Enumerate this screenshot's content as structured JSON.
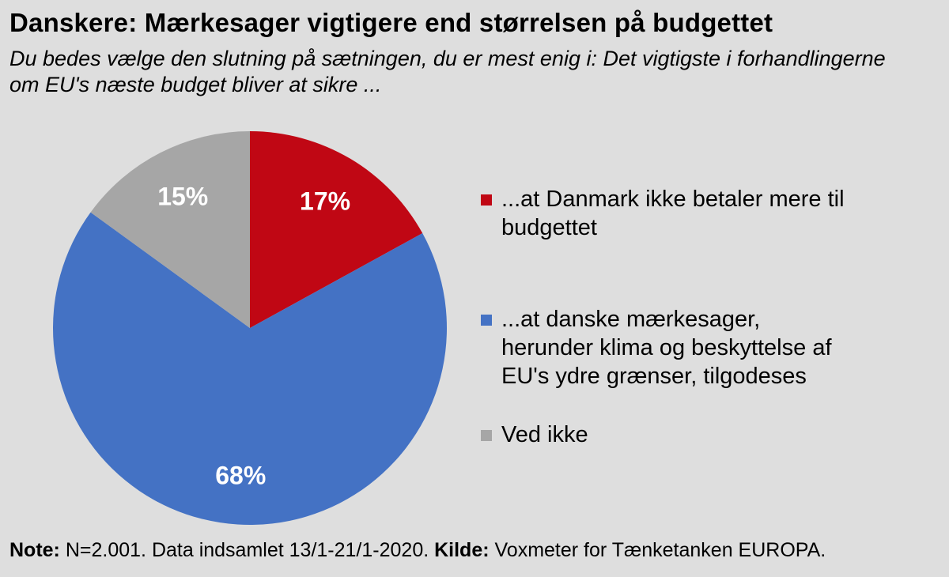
{
  "title": "Danskere: Mærkesager vigtigere end størrelsen på budgettet",
  "subtitle": "Du bedes vælge den slutning på sætningen, du er mest enig i: Det vigtigste i forhandlingerne om EU's næste budget bliver at sikre ...",
  "chart_data": {
    "type": "pie",
    "title": "Danskere: Mærkesager vigtigere end størrelsen på budgettet",
    "slices": [
      {
        "label": "...at Danmark ikke betaler mere til budgettet",
        "value": 17,
        "display": "17%",
        "color": "#c00714"
      },
      {
        "label": "...at danske mærkesager, herunder klima og beskyttelse af EU's ydre grænser, tilgodeses",
        "value": 68,
        "display": "68%",
        "color": "#4472c4"
      },
      {
        "label": "Ved ikke",
        "value": 15,
        "display": "15%",
        "color": "#a6a6a6"
      }
    ],
    "legend_position": "right"
  },
  "footer": {
    "note_label": "Note:",
    "note_text": " N=2.001. Data indsamlet 13/1-21/1-2020. ",
    "source_label": "Kilde:",
    "source_text": " Voxmeter for Tænketanken EUROPA."
  }
}
